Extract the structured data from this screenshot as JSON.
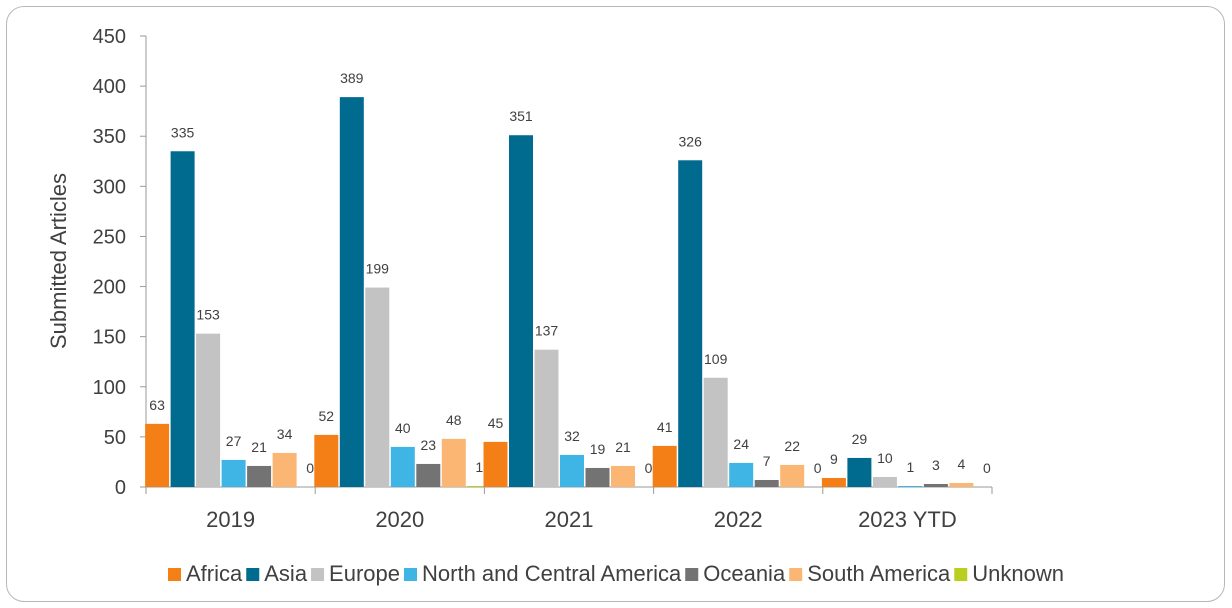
{
  "chart_data": {
    "type": "bar",
    "title": "",
    "xlabel": "",
    "ylabel": "Submitted Articles",
    "ylim": [
      0,
      450
    ],
    "yticks": [
      0,
      50,
      100,
      150,
      200,
      250,
      300,
      350,
      400,
      450
    ],
    "grid": false,
    "legend_position": "bottom",
    "categories": [
      "2019",
      "2020",
      "2021",
      "2022",
      "2023 YTD"
    ],
    "series": [
      {
        "name": "Africa",
        "color": "#f57f17",
        "values": [
          63,
          52,
          45,
          41,
          9
        ]
      },
      {
        "name": "Asia",
        "color": "#006b8f",
        "values": [
          335,
          389,
          351,
          326,
          29
        ]
      },
      {
        "name": "Europe",
        "color": "#c3c3c3",
        "values": [
          153,
          199,
          137,
          109,
          10
        ]
      },
      {
        "name": "North and Central America",
        "color": "#3fb5e5",
        "values": [
          27,
          40,
          32,
          24,
          1
        ]
      },
      {
        "name": "Oceania",
        "color": "#737373",
        "values": [
          21,
          23,
          19,
          7,
          3
        ]
      },
      {
        "name": "South America",
        "color": "#fbb673",
        "values": [
          34,
          48,
          21,
          22,
          4
        ]
      },
      {
        "name": "Unknown",
        "color": "#b9cf1f",
        "values": [
          0,
          1,
          0,
          0,
          0
        ]
      }
    ]
  }
}
